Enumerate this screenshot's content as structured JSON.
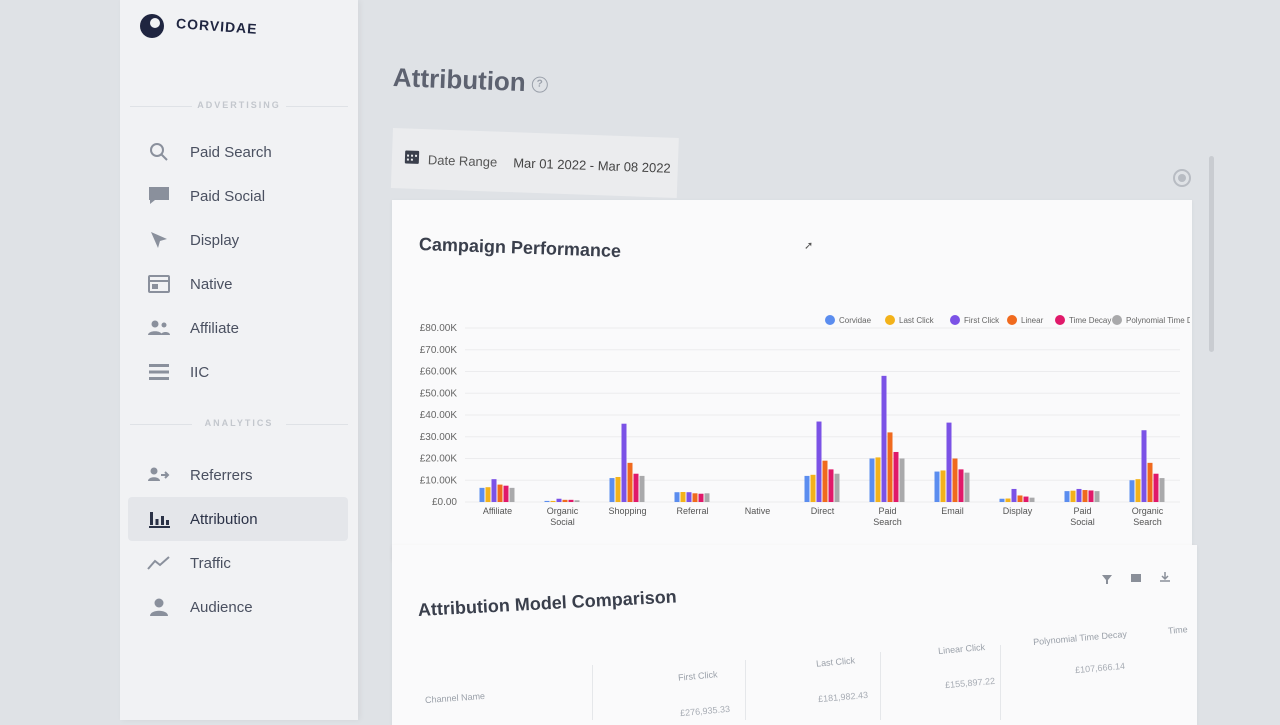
{
  "brand": {
    "name": "CORVIDAE"
  },
  "sidebar": {
    "sections": [
      {
        "label": "ADVERTISING",
        "items": [
          {
            "label": "Paid Search",
            "icon": "search-icon"
          },
          {
            "label": "Paid Social",
            "icon": "chat-icon"
          },
          {
            "label": "Display",
            "icon": "send-icon"
          },
          {
            "label": "Native",
            "icon": "layout-icon"
          },
          {
            "label": "Affiliate",
            "icon": "people-icon"
          },
          {
            "label": "IIC",
            "icon": "list-icon"
          }
        ]
      },
      {
        "label": "ANALYTICS",
        "items": [
          {
            "label": "Referrers",
            "icon": "referrers-icon"
          },
          {
            "label": "Attribution",
            "icon": "bar-chart-icon",
            "active": true
          },
          {
            "label": "Traffic",
            "icon": "trend-icon"
          },
          {
            "label": "Audience",
            "icon": "person-icon"
          }
        ]
      }
    ]
  },
  "page": {
    "title": "Attribution",
    "help": "?"
  },
  "date_range": {
    "label": "Date Range",
    "value": "Mar 01 2022 - Mar 08 2022",
    "icon": "calendar-icon"
  },
  "colors": {
    "Corvidae": "#5b8def",
    "Last Click": "#f3b21a",
    "First Click": "#7b52e6",
    "Linear": "#f06a1e",
    "Time Decay": "#e0196a",
    "Polynomial Time Decay": "#a9a9ab"
  },
  "chart_data": {
    "type": "bar",
    "title": "Campaign Performance",
    "categories": [
      "Affiliate",
      "Organic Social",
      "Shopping",
      "Referral",
      "Native",
      "Direct",
      "Paid Search",
      "Email",
      "Display",
      "Paid Social",
      "Organic Search"
    ],
    "y_ticks": [
      "£0.00",
      "£10.00K",
      "£20.00K",
      "£30.00K",
      "£40.00K",
      "£50.00K",
      "£60.00K",
      "£70.00K",
      "£80.00K"
    ],
    "ylim": [
      0,
      80000
    ],
    "grid": true,
    "legend": "top-right",
    "series": [
      {
        "name": "Corvidae",
        "values": [
          6500,
          500,
          11000,
          4500,
          0,
          12000,
          20000,
          14000,
          1500,
          5000,
          10000
        ]
      },
      {
        "name": "Last Click",
        "values": [
          6800,
          500,
          11500,
          4600,
          0,
          12500,
          20500,
          14500,
          1600,
          5200,
          10500
        ]
      },
      {
        "name": "First Click",
        "values": [
          10500,
          1500,
          36000,
          4500,
          0,
          37000,
          58000,
          36500,
          6000,
          6000,
          33000
        ]
      },
      {
        "name": "Linear",
        "values": [
          8000,
          1000,
          18000,
          4000,
          0,
          19000,
          32000,
          20000,
          3000,
          5500,
          18000
        ]
      },
      {
        "name": "Time Decay",
        "values": [
          7500,
          1000,
          13000,
          3800,
          0,
          15000,
          23000,
          15000,
          2500,
          5300,
          13000
        ]
      },
      {
        "name": "Polynomial Time Decay",
        "values": [
          6500,
          800,
          12000,
          4000,
          0,
          13000,
          20000,
          13500,
          2000,
          5000,
          11000
        ]
      }
    ]
  },
  "table": {
    "title": "Attribution Model Comparison",
    "toolbar": {
      "filter": "filter-icon",
      "columns": "columns-icon",
      "download": "download-icon"
    },
    "columns": [
      "Channel Name",
      "First Click",
      "Last Click",
      "Linear Click",
      "Polynomial Time Decay",
      "Time"
    ],
    "first_row_values": [
      "£276,935.33",
      "£181,982.43",
      "£155,897.22",
      "£107,666.14"
    ]
  }
}
